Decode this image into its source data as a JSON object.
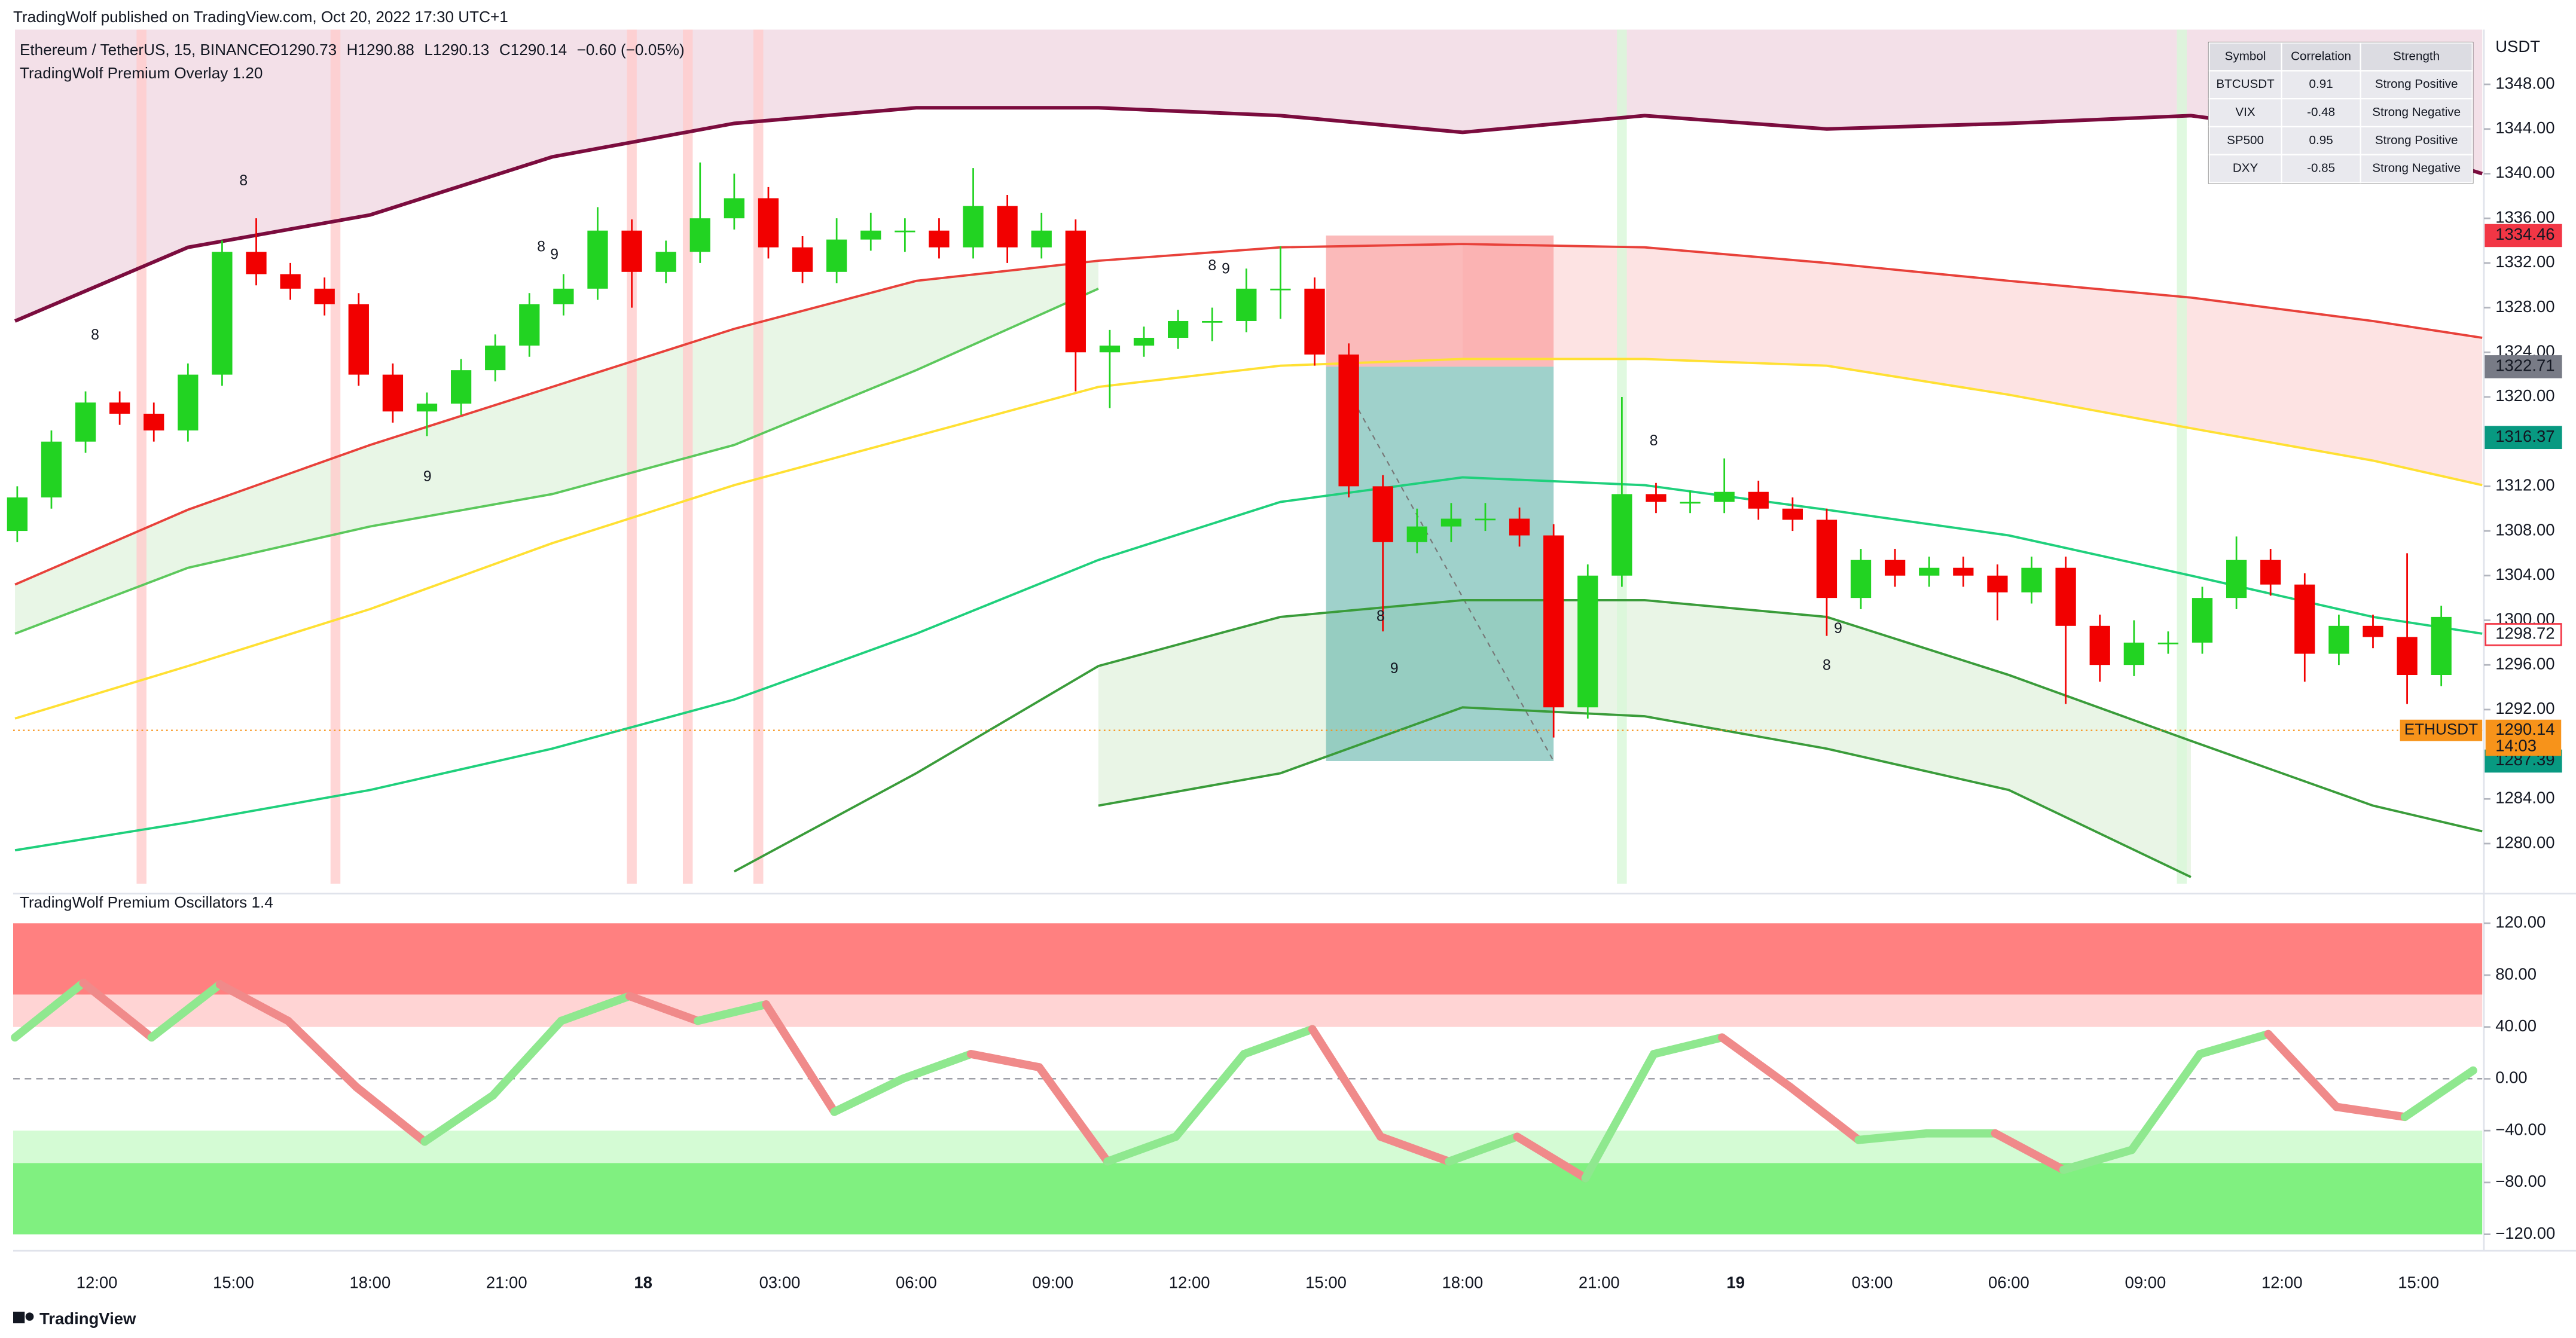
{
  "header": {
    "publisher": "TradingWolf published on TradingView.com, Oct 20, 2022 17:30 UTC+1",
    "symbol": "Ethereum / TetherUS, 15, BINANCE",
    "ohlc": [
      "O1290.73",
      "H1290.88",
      "L1290.13",
      "C1290.14",
      "−0.60 (−0.05%)"
    ],
    "overlay": "TradingWolf Premium Overlay 1.20"
  },
  "table": {
    "columns": [
      "Symbol",
      "Correlation",
      "Strength"
    ],
    "rows": [
      [
        "BTCUSDT",
        "0.91",
        "Strong Positive"
      ],
      [
        "VIX",
        "-0.48",
        "Strong Negative"
      ],
      [
        "SP500",
        "0.95",
        "Strong Positive"
      ],
      [
        "DXY",
        "-0.85",
        "Strong Negative"
      ]
    ]
  },
  "chart_data": [
    {
      "type": "candlestick",
      "currency": "USDT",
      "up_color": "#22d322",
      "down_color": "#f20000",
      "xlim": [
        -1.84,
        52.4
      ],
      "ylim": [
        1276.4,
        1352.9
      ],
      "xticks": [
        {
          "value": 0,
          "label": "12:00"
        },
        {
          "value": 3,
          "label": "15:00"
        },
        {
          "value": 6,
          "label": "18:00"
        },
        {
          "value": 9,
          "label": "21:00"
        },
        {
          "value": 12,
          "label": "18"
        },
        {
          "value": 15,
          "label": "03:00"
        },
        {
          "value": 18,
          "label": "06:00"
        },
        {
          "value": 21,
          "label": "09:00"
        },
        {
          "value": 24,
          "label": "12:00"
        },
        {
          "value": 27,
          "label": "15:00"
        },
        {
          "value": 30,
          "label": "18:00"
        },
        {
          "value": 33,
          "label": "21:00"
        },
        {
          "value": 36,
          "label": "19"
        },
        {
          "value": 39,
          "label": "03:00"
        },
        {
          "value": 42,
          "label": "06:00"
        },
        {
          "value": 45,
          "label": "09:00"
        },
        {
          "value": 48,
          "label": "12:00"
        },
        {
          "value": 51,
          "label": "15:00"
        }
      ],
      "yticks": [
        {
          "value": 1348,
          "label": "1348.00"
        },
        {
          "value": 1344,
          "label": "1344.00"
        },
        {
          "value": 1340,
          "label": "1340.00"
        },
        {
          "value": 1336,
          "label": "1336.00"
        },
        {
          "value": 1332,
          "label": "1332.00"
        },
        {
          "value": 1328,
          "label": "1328.00"
        },
        {
          "value": 1324,
          "label": "1324.00"
        },
        {
          "value": 1320,
          "label": "1320.00"
        },
        {
          "value": 1312,
          "label": "1312.00"
        },
        {
          "value": 1308,
          "label": "1308.00"
        },
        {
          "value": 1304,
          "label": "1304.00"
        },
        {
          "value": 1300,
          "label": "1300.00"
        },
        {
          "value": 1296,
          "label": "1296.00"
        },
        {
          "value": 1292,
          "label": "1292.00"
        },
        {
          "value": 1284,
          "label": "1284.00"
        },
        {
          "value": 1280,
          "label": "1280.00"
        }
      ],
      "x": [
        -1.75,
        -1,
        -0.25,
        0.5,
        1.25,
        2,
        2.75,
        3.5,
        4.25,
        5,
        5.75,
        6.5,
        7.25,
        8,
        8.75,
        9.5,
        10.25,
        11,
        11.75,
        12.5,
        13.25,
        14,
        14.75,
        15.5,
        16.25,
        17,
        17.75,
        18.5,
        19.25,
        20,
        20.75,
        21.5,
        22.25,
        23,
        23.75,
        24.5,
        25.25,
        26,
        26.75,
        27.5,
        28.25,
        29,
        29.75,
        30.5,
        31.25,
        32,
        32.75,
        33.5,
        34.25,
        35,
        35.75,
        36.5,
        37.25,
        38,
        38.75,
        39.5,
        40.25,
        41,
        41.75,
        42.5,
        43.25,
        44,
        44.75,
        45.5,
        46.25,
        47,
        47.75,
        48.5,
        49.25,
        50,
        50.75,
        51.5
      ],
      "open": [
        1308,
        1311,
        1316,
        1319.5,
        1318.5,
        1317,
        1322,
        1333,
        1331,
        1329.7,
        1328.3,
        1322,
        1318.7,
        1319.4,
        1322.4,
        1324.6,
        1328.3,
        1329.7,
        1334.9,
        1331.2,
        1333,
        1336,
        1337.8,
        1333.4,
        1331.2,
        1334.1,
        1334.9,
        1334.9,
        1333.4,
        1337.1,
        1333.4,
        1334.9,
        1324,
        1324.6,
        1325.3,
        1326.8,
        1326.8,
        1329.7,
        1329.7,
        1323.8,
        1312,
        1307,
        1308.4,
        1309.1,
        1309.1,
        1307.6,
        1292.2,
        1304,
        1311.3,
        1310.6,
        1310.6,
        1311.5,
        1310,
        1309,
        1302,
        1305.4,
        1304,
        1304.7,
        1304,
        1302.5,
        1304.7,
        1299.5,
        1296,
        1298,
        1298,
        1302,
        1305.4,
        1303.2,
        1297,
        1299.5,
        1298.5,
        1295.1
      ],
      "high": [
        1312,
        1317,
        1320.5,
        1320.5,
        1319.5,
        1323,
        1334,
        1336,
        1332,
        1330.7,
        1329.3,
        1323,
        1320.4,
        1323.4,
        1325.6,
        1329.3,
        1331,
        1337,
        1335.9,
        1334,
        1341,
        1340,
        1338.8,
        1334.4,
        1336,
        1336.5,
        1336,
        1336,
        1340.5,
        1338.1,
        1336.5,
        1335.9,
        1326,
        1326.3,
        1327.8,
        1328,
        1331.5,
        1333.5,
        1330.7,
        1324.8,
        1313,
        1310,
        1310.5,
        1310.5,
        1310.1,
        1308.6,
        1305,
        1320,
        1312.3,
        1311.6,
        1314.5,
        1312.5,
        1311,
        1310,
        1306.4,
        1306.4,
        1305.7,
        1305.7,
        1305,
        1305.7,
        1305.7,
        1300.5,
        1300,
        1299,
        1303,
        1307.5,
        1306.4,
        1304.2,
        1300.5,
        1300.5,
        1306,
        1301.3
      ],
      "low": [
        1307,
        1310,
        1315,
        1317.5,
        1316,
        1316,
        1321,
        1330,
        1328.7,
        1327.3,
        1321,
        1317.7,
        1316.5,
        1318.4,
        1321.4,
        1323.6,
        1327.3,
        1328.7,
        1328,
        1330.2,
        1332,
        1335,
        1332.4,
        1330.2,
        1330.2,
        1333.1,
        1333,
        1332.4,
        1332.4,
        1332,
        1332.4,
        1320.5,
        1319,
        1323.6,
        1324.3,
        1325,
        1325.8,
        1327,
        1322.8,
        1311,
        1299,
        1306,
        1307,
        1308,
        1306.6,
        1289.5,
        1291.2,
        1303,
        1309.6,
        1309.6,
        1309.6,
        1309,
        1308,
        1298.6,
        1301,
        1303,
        1303,
        1303,
        1300,
        1301.5,
        1292.5,
        1294.5,
        1295,
        1297,
        1297,
        1301,
        1302.2,
        1294.5,
        1296,
        1297.5,
        1292.5,
        1294.1
      ],
      "close": [
        1311,
        1316,
        1319.5,
        1318.5,
        1317,
        1322,
        1333,
        1331,
        1329.7,
        1328.3,
        1322,
        1318.7,
        1319.4,
        1322.4,
        1324.6,
        1328.3,
        1329.7,
        1334.9,
        1331.2,
        1333,
        1336,
        1337.8,
        1333.4,
        1331.2,
        1334.1,
        1334.9,
        1334.9,
        1333.4,
        1337.1,
        1333.4,
        1334.9,
        1324,
        1324.6,
        1325.3,
        1326.8,
        1326.8,
        1329.7,
        1329.7,
        1323.8,
        1312,
        1307,
        1308.4,
        1309.1,
        1309.1,
        1307.6,
        1292.2,
        1304,
        1311.3,
        1310.6,
        1310.6,
        1311.5,
        1310,
        1309,
        1302,
        1305.4,
        1304,
        1304.7,
        1304,
        1302.5,
        1304.7,
        1299.5,
        1296,
        1298,
        1298,
        1302,
        1305.4,
        1303.2,
        1297,
        1299.5,
        1298.5,
        1295.1,
        1300.3
      ],
      "band_x": [
        -1.8,
        2,
        6,
        10,
        14,
        18,
        22,
        26,
        30,
        34,
        38,
        42,
        46,
        50,
        52.4
      ],
      "bands": [
        {
          "color": "#7b0c3e",
          "values": [
            1326.8,
            1333.4,
            1336.3,
            1341.5,
            1344.5,
            1345.9,
            1345.9,
            1345.2,
            1343.7,
            1345.2,
            1344,
            1344.5,
            1345.2,
            1343,
            1340
          ]
        },
        {
          "color": "#e8413a",
          "values": [
            1303.2,
            1309.9,
            1315.7,
            1320.9,
            1326.1,
            1330.4,
            1332.2,
            1333.4,
            1333.7,
            1333.4,
            1332,
            1330.4,
            1328.9,
            1326.8,
            1325.3
          ]
        },
        {
          "color": "#5cc85c",
          "values": [
            1298.8,
            1304.7,
            1308.4,
            1311.3,
            1315.7,
            1322.4,
            1329.7,
            null,
            null,
            null,
            null,
            null,
            null,
            null,
            null
          ]
        },
        {
          "color": "#ffe033",
          "values": [
            1291.2,
            1295.9,
            1301,
            1306.9,
            1312.1,
            1316.5,
            1320.9,
            1322.8,
            1323.4,
            1323.4,
            1322.8,
            1320.2,
            1317.2,
            1314.3,
            1312.1
          ]
        },
        {
          "color": "#1fd07c",
          "values": [
            1279.4,
            1281.9,
            1284.8,
            1288.5,
            1292.9,
            1298.8,
            1305.4,
            1310.6,
            1312.8,
            1312.1,
            1309.9,
            1307.6,
            1304,
            1300.3,
            1298.8
          ]
        },
        {
          "color": "#3a9c3a",
          "values": [
            null,
            null,
            null,
            null,
            1277.5,
            1286.3,
            1295.9,
            1300.3,
            1301.8,
            1301.8,
            1300.3,
            1295.1,
            1289.2,
            1283.4,
            1281.1
          ]
        },
        {
          "color": "#3a9c3a",
          "values": [
            null,
            null,
            null,
            null,
            null,
            null,
            1283.4,
            1286.3,
            1292.2,
            1291.4,
            1288.5,
            1284.8,
            1277,
            null,
            null
          ]
        }
      ],
      "fills": [
        {
          "between": [
            0,
            "top"
          ],
          "color": "#f3e0e8"
        },
        {
          "between": [
            1,
            2
          ],
          "color": "#e8f6e6"
        },
        {
          "between": [
            1,
            3
          ],
          "color": "#fde3e3",
          "start": 27
        },
        {
          "between": [
            5,
            6
          ],
          "color": "#e9f5e6"
        }
      ],
      "highlights": [
        {
          "x": 0.98,
          "color": "#ffcccc"
        },
        {
          "x": 5.24,
          "color": "#ffcccc"
        },
        {
          "x": 11.75,
          "color": "#ffcccc"
        },
        {
          "x": 12.98,
          "color": "#ffcccc"
        },
        {
          "x": 14.53,
          "color": "#ffcccc"
        },
        {
          "x": 33.5,
          "color": "#d8f7d8"
        },
        {
          "x": 45.8,
          "color": "#d8f7d8"
        }
      ],
      "counts": [
        {
          "x": 3.22,
          "y": 1339.3,
          "value": 8,
          "color": "#f07070"
        },
        {
          "x": -0.04,
          "y": 1325.5,
          "value": 8,
          "color": "#f07070"
        },
        {
          "x": 9.76,
          "y": 1333.4,
          "value": 8,
          "color": "#f07070"
        },
        {
          "x": 10.05,
          "y": 1332.7,
          "value": 9,
          "color": "#f07070"
        },
        {
          "x": 7.26,
          "y": 1312.8,
          "value": 9,
          "color": "#55aa55"
        },
        {
          "x": 24.5,
          "y": 1331.7,
          "value": 8,
          "color": "#f07070"
        },
        {
          "x": 24.8,
          "y": 1331.4,
          "value": 9,
          "color": "#f07070"
        },
        {
          "x": 34.2,
          "y": 1316,
          "value": 8,
          "color": "#f07070"
        },
        {
          "x": 28.5,
          "y": 1295.6,
          "value": 9,
          "color": "#55aa55"
        },
        {
          "x": 28.2,
          "y": 1300.3,
          "value": 8,
          "color": "#55aa55"
        },
        {
          "x": 38,
          "y": 1295.9,
          "value": 8,
          "color": "#55aa55"
        },
        {
          "x": 38.25,
          "y": 1299.2,
          "value": 9,
          "color": "#55aa55"
        }
      ],
      "position": {
        "start": 27,
        "end": 32,
        "stop": 1334.46,
        "entry": 1322.71,
        "target": 1287.39
      },
      "price_labels": [
        {
          "value": 1316.37,
          "color": "#089981"
        },
        {
          "value": 1298.72,
          "color": "#f23645"
        }
      ],
      "last": {
        "symbol": "ETHUSDT",
        "value": 1290.14,
        "countdown": "14:03",
        "color": "#f7931a"
      }
    },
    {
      "type": "line",
      "title": "TradingWolf Premium Oscillators 1.4",
      "xlim": [
        -1.84,
        52.4
      ],
      "ylim": [
        -120,
        120
      ],
      "yticks": [
        {
          "value": 120,
          "label": "120.00"
        },
        {
          "value": 80,
          "label": "80.00"
        },
        {
          "value": 40,
          "label": "40.00"
        },
        {
          "value": 0,
          "label": "0.00"
        },
        {
          "value": -40,
          "label": "−40.00"
        },
        {
          "value": -80,
          "label": "−80.00"
        },
        {
          "value": -120,
          "label": "−120.00"
        }
      ],
      "zones": [
        {
          "from": 65,
          "to": 120,
          "color": "#ff8080"
        },
        {
          "from": 40,
          "to": 65,
          "color": "#ffd4d4"
        },
        {
          "from": -65,
          "to": -40,
          "color": "#d4fbd4"
        },
        {
          "from": -120,
          "to": -65,
          "color": "#80f080"
        }
      ],
      "x": [
        -1.8,
        -0.3,
        1.2,
        2.7,
        4.2,
        5.7,
        7.2,
        8.7,
        10.2,
        11.7,
        13.2,
        14.7,
        16.2,
        17.7,
        19.2,
        20.7,
        22.2,
        23.7,
        25.2,
        26.7,
        28.2,
        29.7,
        31.2,
        32.7,
        34.2,
        35.7,
        37.2,
        38.7,
        40.2,
        41.7,
        43.2,
        44.7,
        46.2,
        47.7,
        49.2,
        50.7,
        52.2
      ],
      "series": [
        {
          "up_color": "#8fe88f",
          "down_color": "#f08a8a",
          "values": [
            31.9,
            74,
            31.9,
            72.8,
            44.7,
            -6.4,
            -48.5,
            -12.8,
            44.7,
            63.8,
            44.7,
            57.4,
            -25.5,
            0,
            19.1,
            8.9,
            -63.8,
            -44.7,
            19.1,
            38.3,
            -44.7,
            -63.8,
            -44.7,
            -76.6,
            19.1,
            31.9,
            -6.4,
            -47.2,
            -42.1,
            -42.1,
            -70.2,
            -54.9,
            19.1,
            34.5,
            -21.7,
            -29.4,
            6.4
          ]
        }
      ]
    }
  ],
  "footer": {
    "brand": "TradingView"
  }
}
